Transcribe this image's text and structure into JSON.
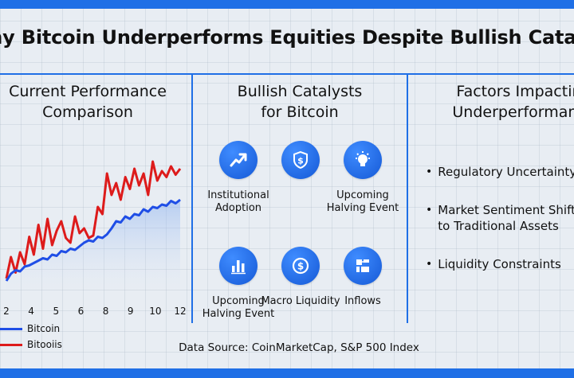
{
  "title": "Why Bitcoin Underperforms Equities Despite Bullish Catalysts",
  "panels": {
    "performance": {
      "line1": "Current Performance",
      "line2": "Comparison"
    },
    "catalysts": {
      "line1": "Bullish Catalysts",
      "line2": "for Bitcoin"
    },
    "factors": {
      "line1": "Factors Impacting",
      "line2": "Underperformance"
    }
  },
  "colors": {
    "accent": "#1f6fe6",
    "series_blue": "#1f4ee6",
    "series_red": "#dd1b1b"
  },
  "chart_data": {
    "type": "line",
    "x_ticks": [
      "2",
      "4",
      "5",
      "6",
      "8",
      "9",
      "10",
      "12"
    ],
    "series": [
      {
        "name": "Bitcoin",
        "color": "#1f4ee6",
        "values": [
          8,
          14,
          17,
          16,
          20,
          21,
          23,
          25,
          27,
          26,
          30,
          29,
          33,
          32,
          35,
          34,
          37,
          40,
          42,
          41,
          45,
          44,
          47,
          52,
          58,
          57,
          62,
          60,
          64,
          63,
          68,
          66,
          70,
          69,
          72,
          71,
          75,
          73,
          76
        ]
      },
      {
        "name": "Bitooiis",
        "color": "#dd1b1b",
        "values": [
          10,
          28,
          15,
          32,
          22,
          45,
          30,
          55,
          35,
          60,
          38,
          50,
          58,
          44,
          40,
          62,
          48,
          52,
          44,
          46,
          70,
          64,
          98,
          80,
          90,
          76,
          95,
          85,
          102,
          88,
          98,
          80,
          108,
          92,
          100,
          95,
          104,
          97,
          102
        ]
      }
    ],
    "ylim": [
      0,
      120
    ],
    "grid": true,
    "legend": "bottom-left"
  },
  "catalysts": [
    {
      "icon": "trend-up-icon",
      "label": "Institutional Adoption"
    },
    {
      "icon": "dollar-shield-icon",
      "label": ""
    },
    {
      "icon": "bulb-icon",
      "label": "Upcoming Halving Event"
    },
    {
      "icon": "bar-chart-icon",
      "label": "Upcoming Halving Event"
    },
    {
      "icon": "dollar-coin-icon",
      "label": "Macro Liquidity"
    },
    {
      "icon": "network-icon",
      "label": "Inflows"
    }
  ],
  "factors": [
    {
      "line1": "Regulatory Uncertainty",
      "line2": ""
    },
    {
      "line1": "Market Sentiment Shift",
      "line2": "to Traditional Assets"
    },
    {
      "line1": "Liquidity Constraints",
      "line2": ""
    }
  ],
  "source": "Data Source: CoinMarketCap, S&P 500 Index"
}
